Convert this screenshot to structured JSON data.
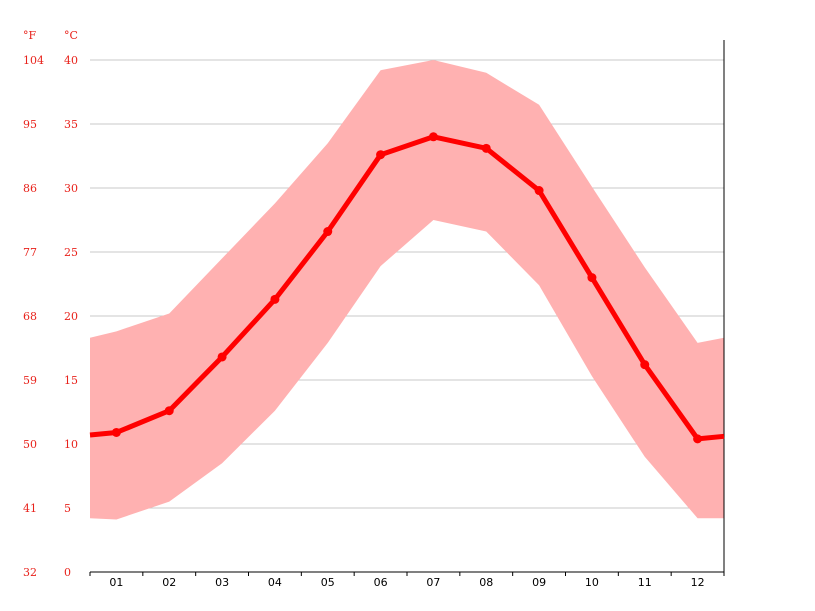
{
  "chart_data": {
    "type": "line",
    "units": {
      "fahrenheit": "°F",
      "celsius": "°C"
    },
    "categories": [
      "01",
      "02",
      "03",
      "04",
      "05",
      "06",
      "07",
      "08",
      "09",
      "10",
      "11",
      "12"
    ],
    "yticks_c": [
      0,
      5,
      10,
      15,
      20,
      25,
      30,
      35,
      40
    ],
    "yticks_f": [
      32,
      41,
      50,
      59,
      68,
      77,
      86,
      95,
      104
    ],
    "ylim": [
      0,
      40
    ],
    "grid": true,
    "series": [
      {
        "role": "average",
        "values": [
          10.9,
          12.6,
          16.8,
          21.3,
          26.6,
          32.6,
          34.0,
          33.1,
          29.8,
          23.0,
          16.2,
          10.4
        ]
      },
      {
        "role": "max",
        "values": [
          18.8,
          20.2,
          24.5,
          28.8,
          33.5,
          39.2,
          40.0,
          39.0,
          36.5,
          30.1,
          23.8,
          17.9
        ]
      },
      {
        "role": "min",
        "values": [
          4.1,
          5.5,
          8.5,
          12.6,
          17.9,
          23.9,
          27.5,
          26.6,
          22.4,
          15.3,
          9.0,
          4.2
        ]
      }
    ],
    "edge": {
      "left": {
        "average": 10.7,
        "max": 18.3,
        "min": 4.2
      },
      "right": {
        "average": 10.6,
        "max": 18.3,
        "min": 4.2
      }
    },
    "colors": {
      "line": "#ff0000",
      "band": "#ffb1b1",
      "grid": "#c8c8c8",
      "labels": "#e8221b",
      "axis": "#000000"
    }
  }
}
